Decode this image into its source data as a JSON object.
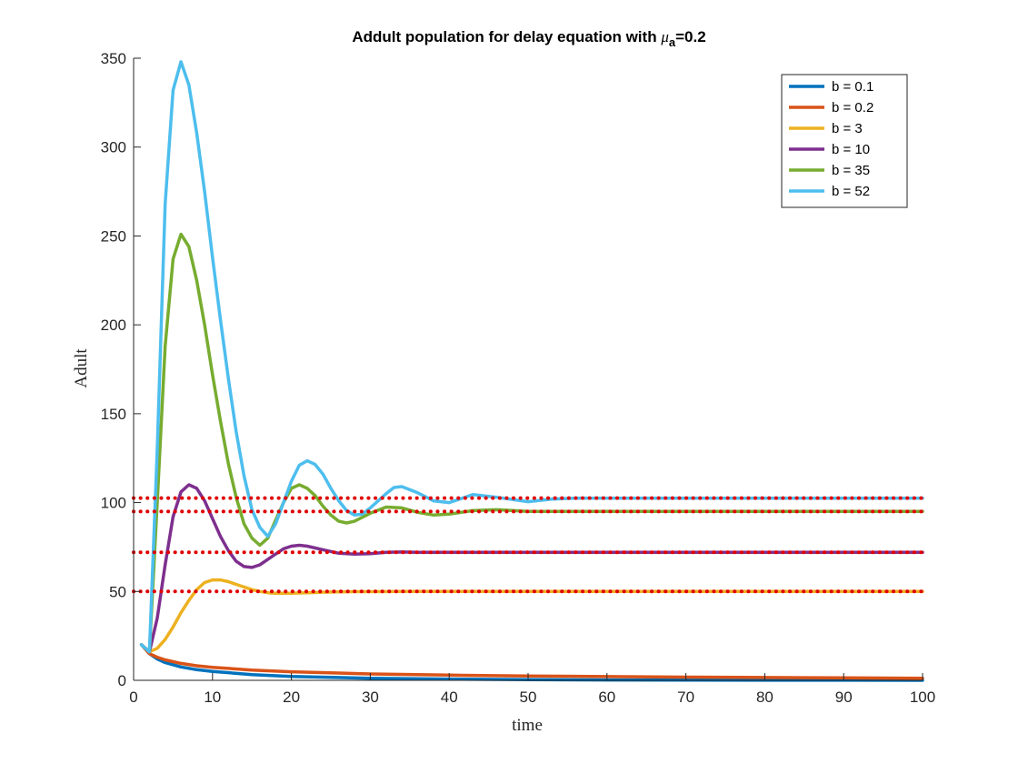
{
  "chart_data": {
    "type": "line",
    "title": {
      "prefix": "Addult population for delay equation with ",
      "symbol": "μ",
      "subscript": "a",
      "suffix": "=0.2"
    },
    "xlabel": "time",
    "ylabel": "Adult",
    "xlim": [
      0,
      100
    ],
    "ylim": [
      0,
      350
    ],
    "xticks": [
      0,
      10,
      20,
      30,
      40,
      50,
      60,
      70,
      80,
      90,
      100
    ],
    "yticks": [
      0,
      50,
      100,
      150,
      200,
      250,
      300,
      350
    ],
    "grid": false,
    "legend_position": "top-right",
    "series": [
      {
        "name": "b = 0.1",
        "color": "#0072BD",
        "x": [
          1,
          2,
          3,
          4,
          6,
          8,
          10,
          15,
          20,
          30,
          40,
          50,
          60,
          70,
          80,
          90,
          100
        ],
        "y": [
          20,
          15,
          12,
          10,
          7.5,
          6,
          5,
          3.2,
          2.2,
          1.2,
          0.7,
          0.4,
          0.2,
          0.1,
          0.05,
          0.03,
          0.02
        ]
      },
      {
        "name": "b = 0.2",
        "color": "#D95319",
        "x": [
          1,
          2,
          3,
          4,
          6,
          8,
          10,
          15,
          20,
          30,
          40,
          50,
          60,
          70,
          80,
          90,
          100
        ],
        "y": [
          20,
          15,
          13,
          11.5,
          9.5,
          8.2,
          7.3,
          5.8,
          4.8,
          3.6,
          2.9,
          2.4,
          2.1,
          1.8,
          1.6,
          1.4,
          1.2
        ]
      },
      {
        "name": "b = 3",
        "color": "#EDB120",
        "x": [
          1,
          2,
          3,
          4,
          5,
          6,
          7,
          8,
          9,
          10,
          11,
          12,
          13,
          14,
          15,
          16,
          17,
          18,
          20,
          22,
          24,
          26,
          28,
          30,
          35,
          40,
          100
        ],
        "y": [
          20,
          16,
          18,
          23,
          30,
          38,
          45,
          51,
          55,
          56.5,
          56.5,
          55.5,
          54,
          52.5,
          51,
          50,
          49.3,
          49,
          49,
          49.3,
          49.6,
          49.8,
          49.9,
          49.9,
          50,
          50,
          50
        ]
      },
      {
        "name": "b = 10",
        "color": "#7E2F8E",
        "x": [
          1,
          2,
          3,
          4,
          5,
          6,
          7,
          8,
          9,
          10,
          11,
          12,
          13,
          14,
          15,
          16,
          17,
          18,
          19,
          20,
          21,
          22,
          24,
          26,
          28,
          30,
          32,
          34,
          36,
          40,
          50,
          100
        ],
        "y": [
          20,
          16,
          35,
          65,
          92,
          106,
          110,
          108,
          101,
          91,
          81,
          73,
          67,
          64,
          63.5,
          65,
          68,
          71,
          74,
          75.5,
          76,
          75.5,
          73.5,
          71.5,
          71,
          71.3,
          72,
          72.2,
          72,
          72,
          72,
          72
        ]
      },
      {
        "name": "b = 35",
        "color": "#77AC30",
        "x": [
          1,
          2,
          3,
          4,
          5,
          6,
          7,
          8,
          9,
          10,
          11,
          12,
          13,
          14,
          15,
          16,
          17,
          18,
          19,
          20,
          21,
          22,
          23,
          24,
          25,
          26,
          27,
          28,
          30,
          32,
          34,
          36,
          38,
          40,
          43,
          46,
          50,
          55,
          60,
          100
        ],
        "y": [
          20,
          16,
          100,
          188,
          237,
          251,
          244,
          225,
          200,
          172,
          146,
          122,
          103,
          88,
          80,
          76,
          80,
          90,
          100,
          108,
          110,
          108,
          104,
          98,
          93,
          89.5,
          88.5,
          89.5,
          94,
          97.5,
          97,
          94.5,
          93,
          93.5,
          95.5,
          96,
          95,
          95,
          95,
          95
        ]
      },
      {
        "name": "b = 52",
        "color": "#4DBEEE",
        "x": [
          1,
          2,
          3,
          4,
          5,
          6,
          7,
          8,
          9,
          10,
          11,
          12,
          13,
          14,
          15,
          16,
          17,
          18,
          19,
          20,
          21,
          22,
          23,
          24,
          25,
          26,
          27,
          28,
          29,
          30,
          32,
          33,
          34,
          36,
          38,
          40,
          43,
          46,
          50,
          53,
          56,
          60,
          100
        ],
        "y": [
          20,
          16,
          130,
          268,
          332,
          348,
          335,
          308,
          275,
          238,
          203,
          170,
          140,
          115,
          96,
          86,
          81,
          88,
          100,
          112,
          121,
          123.5,
          121.5,
          116,
          108,
          101,
          95.5,
          93,
          93.5,
          97,
          105,
          108.5,
          109,
          105.5,
          101,
          100,
          104.5,
          103,
          100.5,
          102,
          102.5,
          102.5,
          102.5
        ]
      }
    ],
    "reference_lines": {
      "style": "dotted",
      "color": "#E00000",
      "y": [
        102.5,
        95,
        72,
        50
      ]
    }
  }
}
